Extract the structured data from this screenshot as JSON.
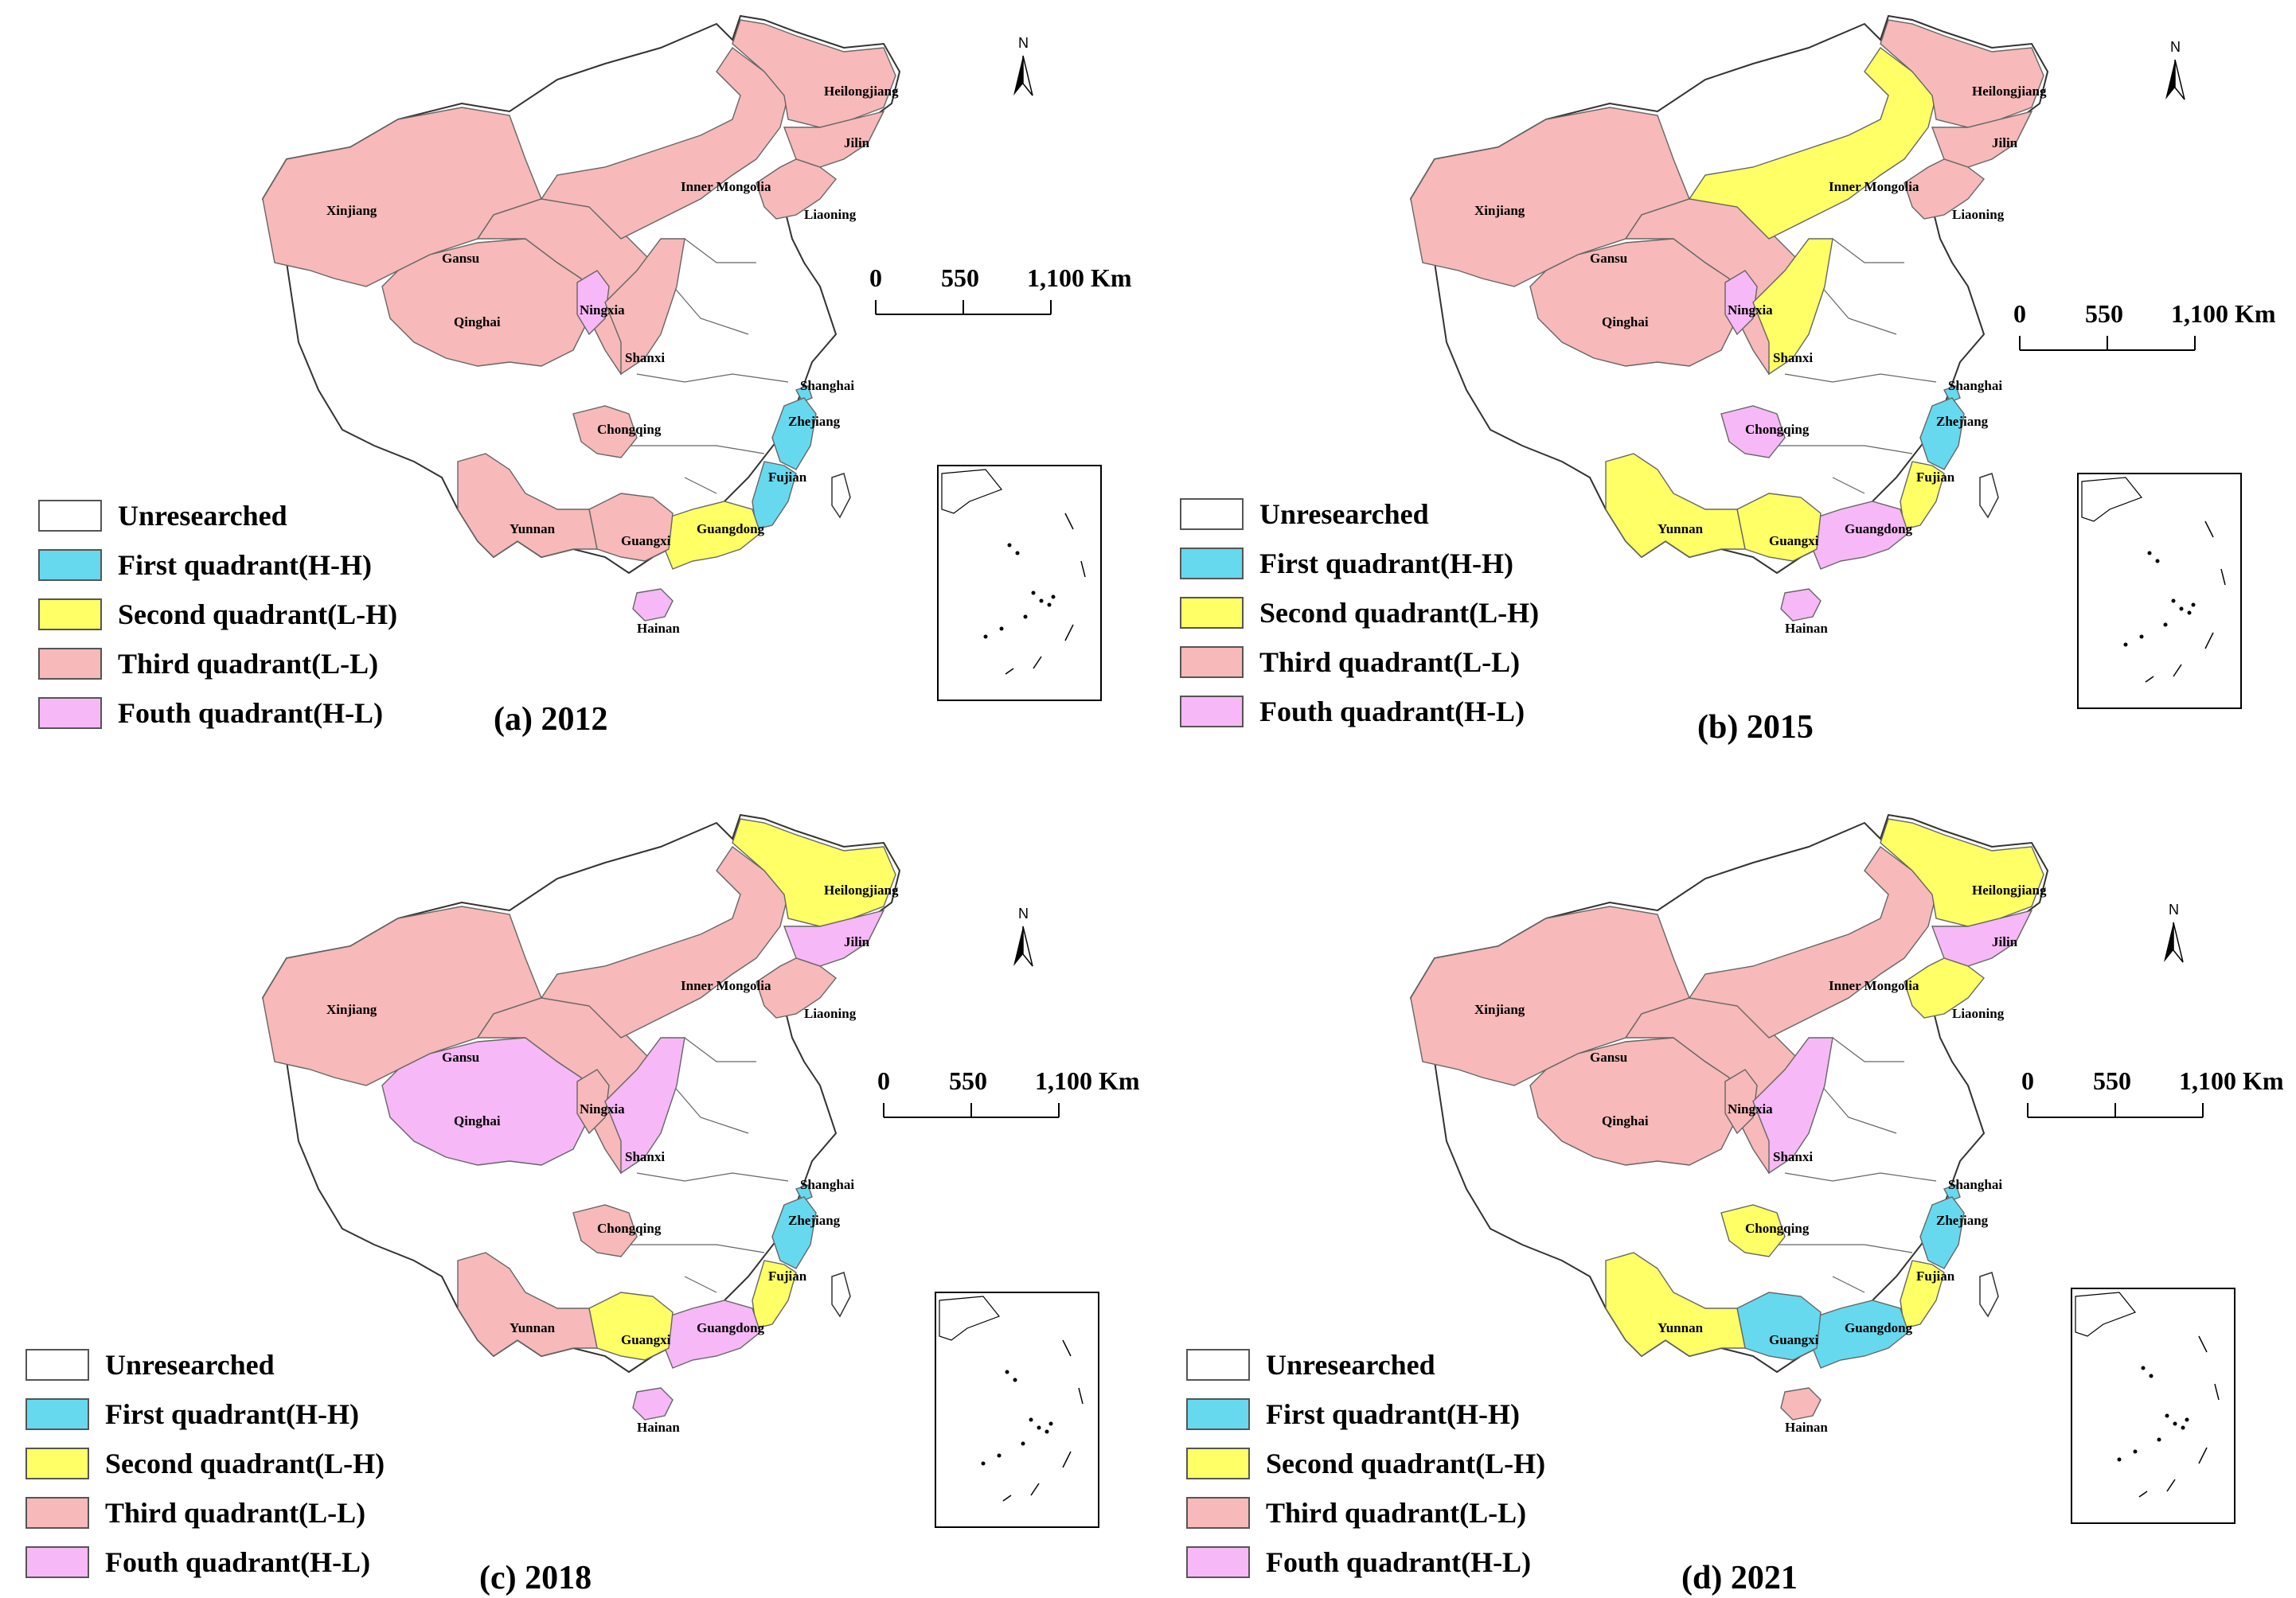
{
  "colors": {
    "unresearched": "#ffffff",
    "first": "#66d9ee",
    "second": "#ffff66",
    "third": "#f7b9b9",
    "fourth": "#f6b8f6",
    "border": "#666666"
  },
  "legend": [
    {
      "key": "unresearched",
      "label": "Unresearched"
    },
    {
      "key": "first",
      "label": "First quadrant(H-H)"
    },
    {
      "key": "second",
      "label": "Second quadrant(L-H)"
    },
    {
      "key": "third",
      "label": "Third quadrant(L-L)"
    },
    {
      "key": "fourth",
      "label": "Fouth quadrant(H-L)"
    }
  ],
  "scale_bar": {
    "ticks": [
      "0",
      "550",
      "1,100 Km"
    ]
  },
  "north_arrow": {
    "label": "N"
  },
  "provinces": [
    {
      "id": "xinjiang",
      "name": "Xinjiang"
    },
    {
      "id": "qinghai",
      "name": "Qinghai"
    },
    {
      "id": "gansu",
      "name": "Gansu"
    },
    {
      "id": "ningxia",
      "name": "Ningxia"
    },
    {
      "id": "shanxi",
      "name": "Shanxi"
    },
    {
      "id": "innermongolia",
      "name": "Inner Mongolia"
    },
    {
      "id": "heilongjiang",
      "name": "Heilongjiang"
    },
    {
      "id": "jilin",
      "name": "Jilin"
    },
    {
      "id": "liaoning",
      "name": "Liaoning"
    },
    {
      "id": "shanghai",
      "name": "Shanghai"
    },
    {
      "id": "zhejiang",
      "name": "Zhejiang"
    },
    {
      "id": "fujian",
      "name": "Fujian"
    },
    {
      "id": "guangdong",
      "name": "Guangdong"
    },
    {
      "id": "guangxi",
      "name": "Guangxi"
    },
    {
      "id": "yunnan",
      "name": "Yunnan"
    },
    {
      "id": "chongqing",
      "name": "Chongqing"
    },
    {
      "id": "hainan",
      "name": "Hainan"
    }
  ],
  "panels": [
    {
      "label": "(a) 2012",
      "classes": {
        "xinjiang": "third",
        "qinghai": "third",
        "gansu": "third",
        "ningxia": "fourth",
        "shanxi": "third",
        "innermongolia": "third",
        "heilongjiang": "third",
        "jilin": "third",
        "liaoning": "third",
        "shanghai": "first",
        "zhejiang": "first",
        "fujian": "first",
        "guangdong": "second",
        "guangxi": "third",
        "yunnan": "third",
        "chongqing": "third",
        "hainan": "fourth"
      }
    },
    {
      "label": "(b) 2015",
      "classes": {
        "xinjiang": "third",
        "qinghai": "third",
        "gansu": "third",
        "ningxia": "fourth",
        "shanxi": "second",
        "innermongolia": "second",
        "heilongjiang": "third",
        "jilin": "third",
        "liaoning": "third",
        "shanghai": "first",
        "zhejiang": "first",
        "fujian": "second",
        "guangdong": "fourth",
        "guangxi": "second",
        "yunnan": "second",
        "chongqing": "fourth",
        "hainan": "fourth"
      }
    },
    {
      "label": "(c) 2018",
      "classes": {
        "xinjiang": "third",
        "qinghai": "fourth",
        "gansu": "third",
        "ningxia": "third",
        "shanxi": "fourth",
        "innermongolia": "third",
        "heilongjiang": "second",
        "jilin": "fourth",
        "liaoning": "third",
        "shanghai": "first",
        "zhejiang": "first",
        "fujian": "second",
        "guangdong": "fourth",
        "guangxi": "second",
        "yunnan": "third",
        "chongqing": "third",
        "hainan": "fourth"
      }
    },
    {
      "label": "(d) 2021",
      "classes": {
        "xinjiang": "third",
        "qinghai": "third",
        "gansu": "third",
        "ningxia": "third",
        "shanxi": "fourth",
        "innermongolia": "third",
        "heilongjiang": "second",
        "jilin": "fourth",
        "liaoning": "second",
        "shanghai": "first",
        "zhejiang": "first",
        "fujian": "second",
        "guangdong": "first",
        "guangxi": "first",
        "yunnan": "second",
        "chongqing": "second",
        "hainan": "third"
      }
    }
  ]
}
